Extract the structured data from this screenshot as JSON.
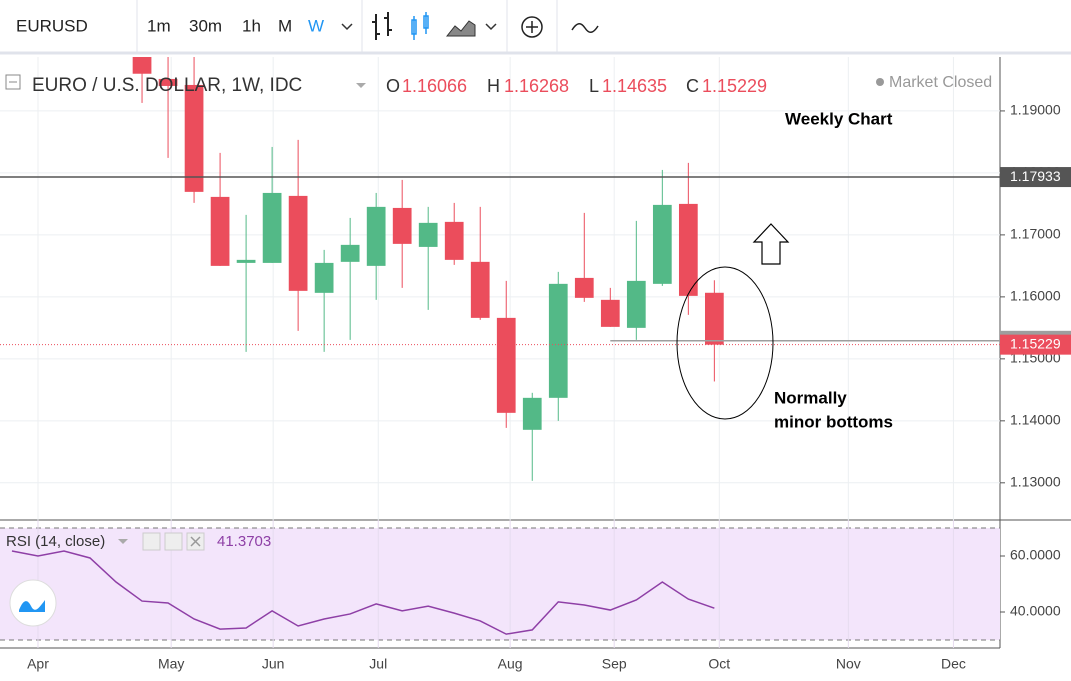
{
  "toolbar": {
    "symbol": "EURUSD",
    "intervals": [
      "1m",
      "30m",
      "1h",
      "M",
      "W"
    ]
  },
  "chart_data": [
    {
      "type": "candlestick",
      "title": "EURO / U.S. DOLLAR, 1W, IDC",
      "status": "Market Closed",
      "ohlc_keys": [
        "O",
        "H",
        "L",
        "C"
      ],
      "annotations": [
        "Weekly Chart",
        "Normally",
        "minor bottoms"
      ],
      "categories": [
        null,
        null,
        null,
        null,
        null,
        null,
        null,
        null,
        null,
        null,
        null,
        null,
        null,
        null,
        null,
        null,
        null,
        null,
        null,
        null,
        null,
        null,
        null,
        null,
        null,
        null,
        null,
        null
      ],
      "open": [
        null,
        null,
        null,
        null,
        null,
        1.2005,
        1.19516,
        1.19419,
        1.17613,
        1.16548,
        1.16548,
        1.17629,
        1.16065,
        1.16565,
        1.165,
        1.17435,
        1.16806,
        1.1721,
        1.16565,
        1.15661,
        1.13855,
        1.14371,
        1.16306,
        1.15952,
        1.155,
        1.1621,
        1.175,
        1.16066
      ],
      "high": [
        null,
        null,
        null,
        null,
        null,
        1.202,
        1.19871,
        1.1987,
        1.18323,
        1.17323,
        1.18419,
        1.18532,
        1.16758,
        1.17274,
        1.17677,
        1.17887,
        1.17452,
        1.17516,
        1.17452,
        1.16258,
        1.14452,
        1.16403,
        1.17355,
        1.16145,
        1.17226,
        1.18048,
        1.18161,
        1.16268
      ],
      "low": [
        null,
        null,
        null,
        null,
        null,
        1.19129,
        1.18242,
        1.17516,
        1.165,
        1.15113,
        1.16548,
        1.15452,
        1.15113,
        1.15306,
        1.15952,
        1.16145,
        1.1579,
        1.16516,
        1.15629,
        1.13887,
        1.13032,
        1.14,
        1.15919,
        1.15516,
        1.15306,
        1.16177,
        1.1571,
        1.14635
      ],
      "close": [
        null,
        null,
        null,
        null,
        null,
        1.196,
        1.19403,
        1.17694,
        1.165,
        1.16597,
        1.17677,
        1.16097,
        1.16548,
        1.16839,
        1.17452,
        1.16855,
        1.17194,
        1.16597,
        1.15661,
        1.14129,
        1.14371,
        1.1621,
        1.15984,
        1.15516,
        1.16258,
        1.17484,
        1.16016,
        1.15229
      ],
      "up_color": "#53b987",
      "down_color": "#eb4d5c",
      "ylim": [
        1.124,
        1.1987
      ],
      "yticks": [
        {
          "value": 1.13,
          "label": "1.13000"
        },
        {
          "value": 1.14,
          "label": "1.14000"
        },
        {
          "value": 1.15,
          "label": "1.15000"
        },
        {
          "value": 1.16,
          "label": "1.16000"
        },
        {
          "value": 1.17,
          "label": "1.17000"
        },
        {
          "value": 1.18,
          "label": "1.18000"
        },
        {
          "value": 1.19,
          "label": "1.19000"
        }
      ],
      "hlines": [
        {
          "value": 1.17933,
          "color": "#555555"
        },
        {
          "value": 1.15291,
          "color": "#9e9e9e"
        }
      ],
      "xlim": [
        -0.46,
        37.98
      ],
      "xticks": [
        {
          "value": 1.0,
          "label": "Apr"
        },
        {
          "value": 6.12,
          "label": "May"
        },
        {
          "value": 10.04,
          "label": "Jun"
        },
        {
          "value": 14.08,
          "label": "Jul"
        },
        {
          "value": 19.15,
          "label": "Aug"
        },
        {
          "value": 23.15,
          "label": "Sep"
        },
        {
          "value": 27.19,
          "label": "Oct"
        },
        {
          "value": 32.15,
          "label": "Nov"
        },
        {
          "value": 36.19,
          "label": "Dec"
        }
      ],
      "grid": true
    },
    {
      "type": "line",
      "title": "RSI (14, close)",
      "color": "#8e3fa6",
      "values": [
        61.8,
        60,
        61.8,
        59.3,
        50.7,
        43.9,
        43.2,
        37.5,
        33.9,
        34.3,
        40.4,
        35,
        37.5,
        39.3,
        42.9,
        40.4,
        42.1,
        39.6,
        36.8,
        32.1,
        33.6,
        43.6,
        42.5,
        40.7,
        44.3,
        50.7,
        44.6,
        41.3703
      ],
      "ylim": [
        27.14,
        72.86
      ],
      "yticks": [
        {
          "value": 40,
          "label": "40.0000"
        },
        {
          "value": 60,
          "label": "60.0000"
        }
      ],
      "band": [
        30,
        70
      ]
    }
  ]
}
